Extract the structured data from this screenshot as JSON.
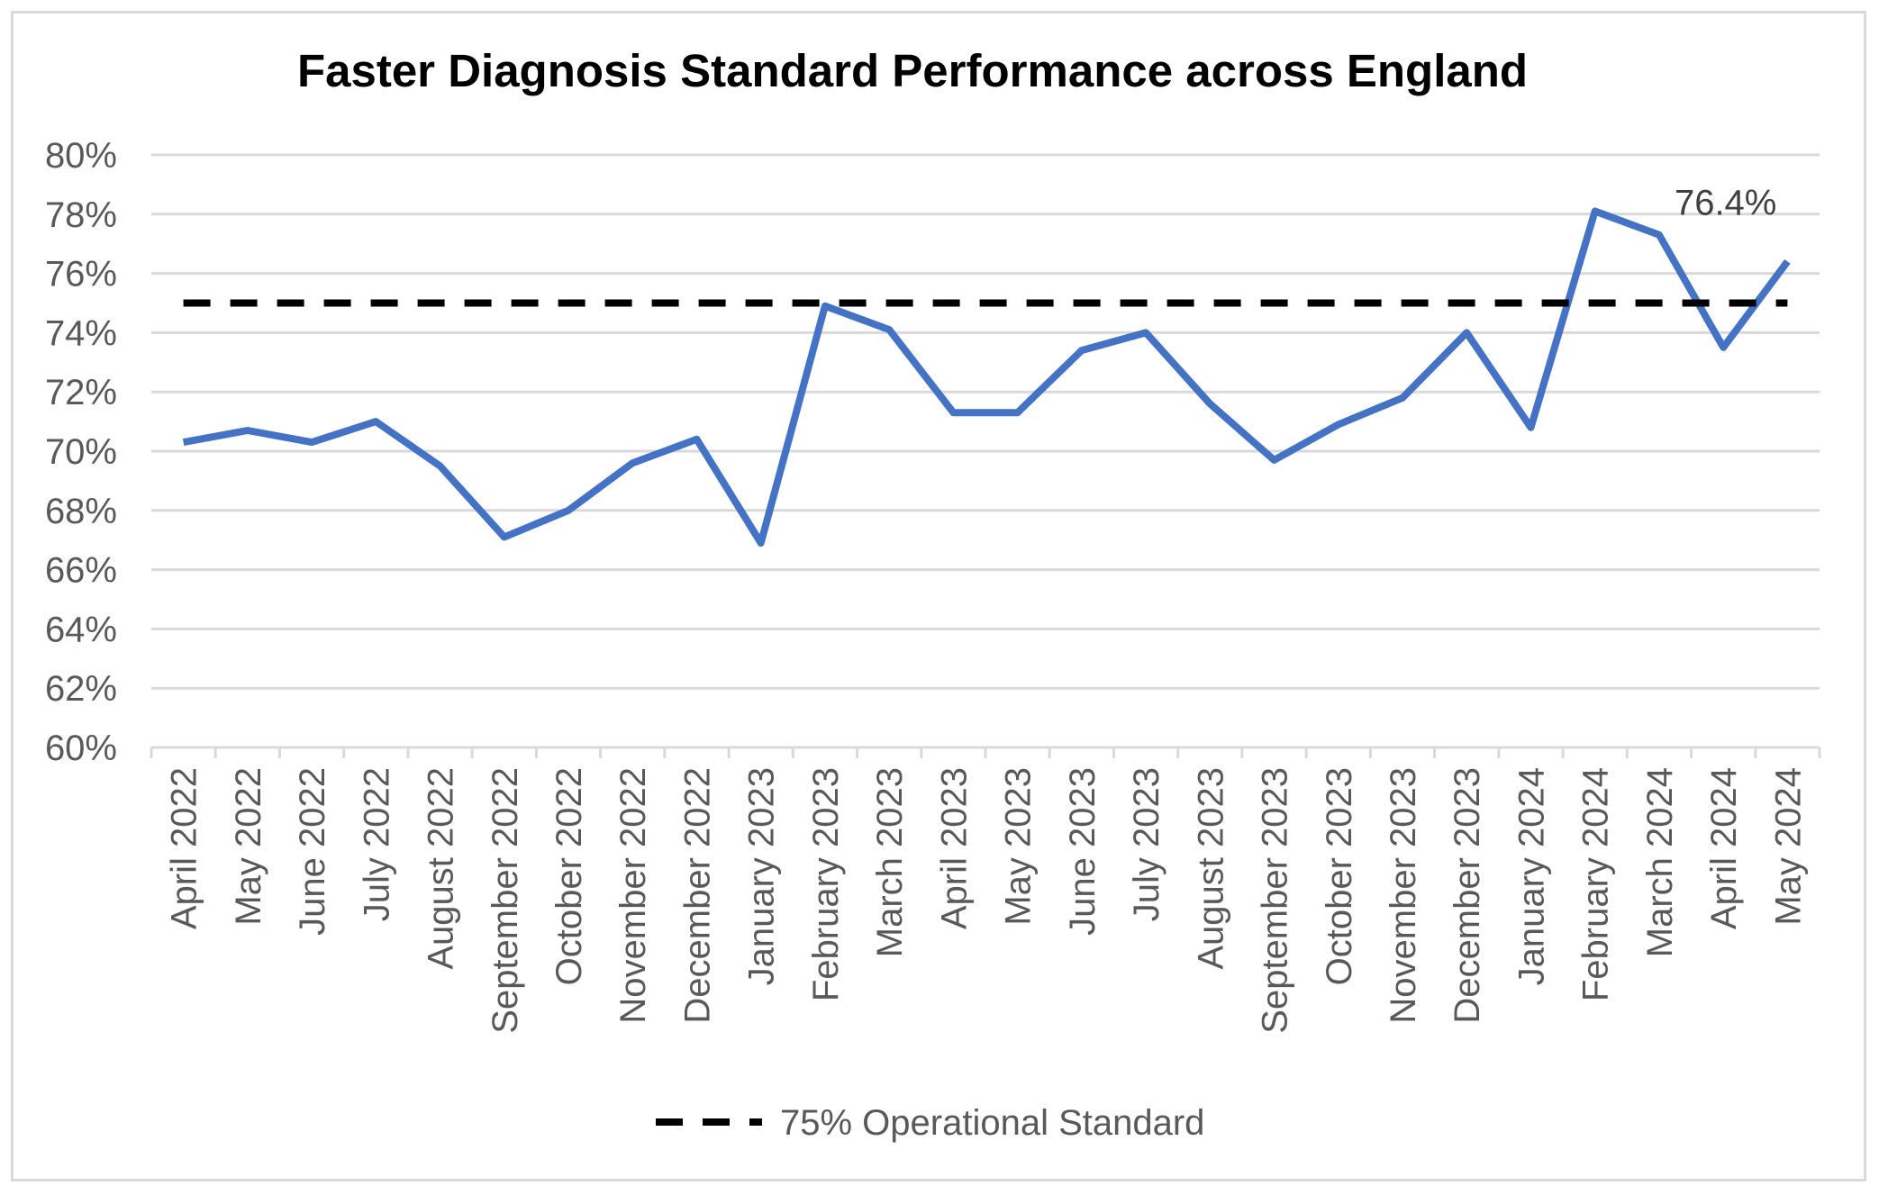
{
  "chart_data": {
    "type": "line",
    "title": "Faster Diagnosis Standard Performance across England",
    "xlabel": "",
    "ylabel": "",
    "ylim": [
      60,
      80
    ],
    "y_ticks": [
      "60%",
      "62%",
      "64%",
      "66%",
      "68%",
      "70%",
      "72%",
      "74%",
      "76%",
      "78%",
      "80%"
    ],
    "grid": true,
    "legend_position": "bottom",
    "categories": [
      "April 2022",
      "May 2022",
      "June 2022",
      "July 2022",
      "August 2022",
      "September 2022",
      "October 2022",
      "November 2022",
      "December 2022",
      "January 2023",
      "February 2023",
      "March 2023",
      "April 2023",
      "May 2023",
      "June 2023",
      "July 2023",
      "August 2023",
      "September 2023",
      "October 2023",
      "November 2023",
      "December 2023",
      "January 2024",
      "February 2024",
      "March 2024",
      "April 2024",
      "May 2024"
    ],
    "series": [
      {
        "name": "",
        "color": "#4472c4",
        "style": "solid",
        "values": [
          70.3,
          70.7,
          70.3,
          71.0,
          69.5,
          67.1,
          68.0,
          69.6,
          70.4,
          66.9,
          74.9,
          74.1,
          71.3,
          71.3,
          73.4,
          74.0,
          71.6,
          69.7,
          70.9,
          71.8,
          74.0,
          70.8,
          78.1,
          77.3,
          73.5,
          76.4
        ],
        "data_label": "76.4%"
      },
      {
        "name": "75% Operational Standard",
        "color": "#000000",
        "style": "dashed",
        "values": [
          75,
          75,
          75,
          75,
          75,
          75,
          75,
          75,
          75,
          75,
          75,
          75,
          75,
          75,
          75,
          75,
          75,
          75,
          75,
          75,
          75,
          75,
          75,
          75,
          75,
          75
        ]
      }
    ]
  }
}
